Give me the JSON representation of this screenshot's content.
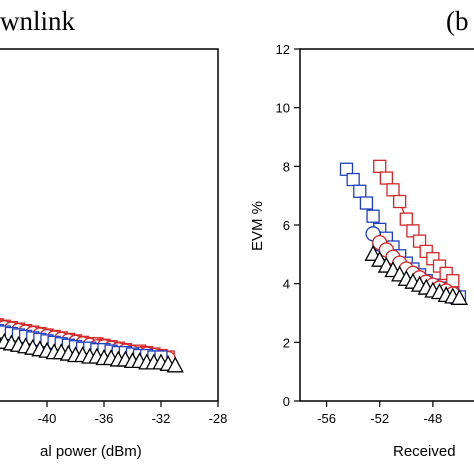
{
  "chart_data": [
    {
      "type": "scatter",
      "title": "wnlink",
      "xlabel": "al power (dBm)",
      "ylabel": "",
      "xlim": [
        -44,
        -28
      ],
      "ylim": [
        0,
        12
      ],
      "x_ticks": [
        "-40",
        "-36",
        "-32",
        "-28"
      ],
      "y_ticks": [],
      "series": [
        {
          "marker": "square",
          "color": "#d62728",
          "line": "solid",
          "x": [
            -43.5,
            -43,
            -42.5,
            -42,
            -41.5,
            -41,
            -40.5,
            -40,
            -39.5,
            -39,
            -38.5,
            -38,
            -37.5,
            -37,
            -36.5,
            -36,
            -35.5,
            -35,
            -34.5,
            -34,
            -33.5,
            -33,
            -32.5,
            -32,
            -31.5
          ],
          "y": [
            2.6,
            2.55,
            2.5,
            2.45,
            2.4,
            2.35,
            2.3,
            2.25,
            2.2,
            2.15,
            2.1,
            2.05,
            2.0,
            1.95,
            1.95,
            1.9,
            1.85,
            1.8,
            1.75,
            1.7,
            1.7,
            1.65,
            1.6,
            1.55,
            1.5
          ]
        },
        {
          "marker": "circle",
          "color": "#d62728",
          "line": "solid",
          "x": [
            -43.5,
            -43,
            -42.5,
            -42,
            -41.5,
            -41,
            -40.5,
            -40,
            -39.5,
            -39,
            -38.5,
            -38,
            -37.5,
            -37,
            -36.5,
            -36,
            -35.5,
            -35,
            -34.5,
            -34,
            -33.5,
            -33,
            -32.5,
            -32,
            -31.5
          ],
          "y": [
            2.55,
            2.5,
            2.45,
            2.4,
            2.35,
            2.3,
            2.25,
            2.2,
            2.15,
            2.1,
            2.05,
            2.0,
            1.95,
            1.9,
            1.85,
            1.85,
            1.8,
            1.75,
            1.7,
            1.65,
            1.6,
            1.6,
            1.55,
            1.5,
            1.45
          ]
        },
        {
          "marker": "square",
          "color": "#1f3fbf",
          "line": "dashed",
          "x": [
            -43.5,
            -43,
            -42.5,
            -42,
            -41.5,
            -41,
            -40.5,
            -40,
            -39.5,
            -39,
            -38.5,
            -38,
            -37.5,
            -37,
            -36.5,
            -36,
            -35.5,
            -35,
            -34.5,
            -34,
            -33.5,
            -33,
            -32.5,
            -32
          ],
          "y": [
            2.4,
            2.35,
            2.3,
            2.25,
            2.2,
            2.15,
            2.1,
            2.05,
            2.0,
            1.95,
            1.9,
            1.85,
            1.8,
            1.8,
            1.75,
            1.75,
            1.7,
            1.65,
            1.65,
            1.6,
            1.55,
            1.55,
            1.5,
            1.5
          ]
        },
        {
          "marker": "triangle",
          "color": "#000000",
          "line": "solid",
          "x": [
            -43.5,
            -43,
            -42.5,
            -42,
            -41.5,
            -41,
            -40.5,
            -40,
            -39.5,
            -39,
            -38.5,
            -38,
            -37.5,
            -37,
            -36.5,
            -36,
            -35.5,
            -35,
            -34.5,
            -34,
            -33.5,
            -33,
            -32.5,
            -32,
            -31.5,
            -31
          ],
          "y": [
            2.05,
            2.0,
            1.95,
            1.9,
            1.85,
            1.8,
            1.75,
            1.7,
            1.65,
            1.65,
            1.6,
            1.55,
            1.55,
            1.5,
            1.5,
            1.45,
            1.45,
            1.4,
            1.4,
            1.35,
            1.35,
            1.3,
            1.3,
            1.3,
            1.25,
            1.2
          ]
        }
      ]
    },
    {
      "type": "scatter",
      "title": "(b",
      "xlabel": "Received",
      "ylabel": "EVM %",
      "xlim": [
        -58,
        -44
      ],
      "ylim": [
        0,
        12
      ],
      "x_ticks": [
        "-56",
        "-52",
        "-48"
      ],
      "y_ticks": [
        "0",
        "2",
        "4",
        "6",
        "8",
        "10",
        "12"
      ],
      "series": [
        {
          "marker": "square",
          "color": "#1f3fbf",
          "line": "solid",
          "x": [
            -54.5,
            -54,
            -53.5,
            -53,
            -52.5,
            -52,
            -51.5,
            -51,
            -50.5,
            -50,
            -49.5,
            -49,
            -48.5,
            -48,
            -47.5,
            -47,
            -46.5,
            -46
          ],
          "y": [
            7.9,
            7.55,
            7.15,
            6.75,
            6.3,
            5.85,
            5.55,
            5.25,
            4.95,
            4.7,
            4.5,
            4.3,
            4.1,
            3.95,
            3.85,
            3.75,
            3.65,
            3.55
          ]
        },
        {
          "marker": "square",
          "color": "#d62728",
          "line": "solid",
          "x": [
            -52,
            -51.5,
            -51,
            -50.5,
            -50,
            -49.5,
            -49,
            -48.5,
            -48,
            -47.5,
            -47,
            -46.5
          ],
          "y": [
            8.0,
            7.6,
            7.2,
            6.8,
            6.2,
            5.8,
            5.45,
            5.1,
            4.85,
            4.6,
            4.35,
            4.1
          ]
        },
        {
          "marker": "circle",
          "color": "#1f3fbf",
          "line": "solid",
          "x": [
            -52.5,
            -52,
            -51.5,
            -51,
            -50.5,
            -50,
            -49.5,
            -49,
            -48.5,
            -48,
            -47.5,
            -47,
            -46.5
          ],
          "y": [
            5.7,
            5.35,
            5.05,
            4.8,
            4.6,
            4.4,
            4.25,
            4.1,
            3.95,
            3.85,
            3.75,
            3.65,
            3.55
          ]
        },
        {
          "marker": "circle",
          "color": "#d62728",
          "line": "solid",
          "x": [
            -52,
            -51.5,
            -51,
            -50.5,
            -50,
            -49.5,
            -49,
            -48.5,
            -48,
            -47.5,
            -47,
            -46.5
          ],
          "y": [
            5.4,
            5.15,
            4.9,
            4.7,
            4.5,
            4.35,
            4.2,
            4.05,
            3.95,
            3.85,
            3.75,
            3.65
          ]
        },
        {
          "marker": "triangle",
          "color": "#000000",
          "line": "solid",
          "x": [
            -52.5,
            -52,
            -51.5,
            -51,
            -50.5,
            -50,
            -49.5,
            -49,
            -48.5,
            -48,
            -47.5,
            -47,
            -46.5,
            -46
          ],
          "y": [
            5.0,
            4.8,
            4.6,
            4.45,
            4.3,
            4.15,
            4.05,
            3.95,
            3.85,
            3.75,
            3.7,
            3.6,
            3.55,
            3.5
          ]
        }
      ]
    }
  ]
}
